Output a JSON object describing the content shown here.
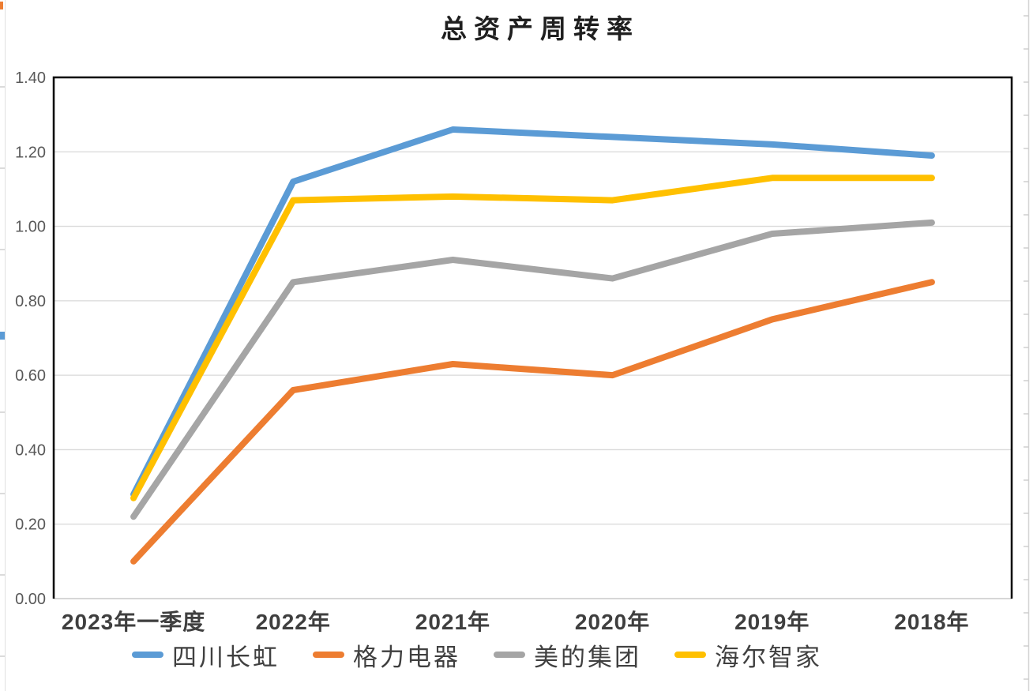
{
  "chart_data": {
    "type": "line",
    "title": "总资产周转率",
    "categories": [
      "2023年一季度",
      "2022年",
      "2021年",
      "2020年",
      "2019年",
      "2018年"
    ],
    "series": [
      {
        "name": "四川长虹",
        "color": "#5B9BD5",
        "values": [
          0.28,
          1.12,
          1.26,
          1.24,
          1.22,
          1.19
        ]
      },
      {
        "name": "格力电器",
        "color": "#ED7D31",
        "values": [
          0.1,
          0.56,
          0.63,
          0.6,
          0.75,
          0.85
        ]
      },
      {
        "name": "美的集团",
        "color": "#A5A5A5",
        "values": [
          0.22,
          0.85,
          0.91,
          0.86,
          0.98,
          1.01
        ]
      },
      {
        "name": "海尔智家",
        "color": "#FFC000",
        "values": [
          0.27,
          1.07,
          1.08,
          1.07,
          1.13,
          1.13
        ]
      }
    ],
    "ylim": [
      0,
      1.4
    ],
    "ytick_step": 0.2,
    "y_tick_labels": [
      "0.00",
      "0.20",
      "0.40",
      "0.60",
      "0.80",
      "1.00",
      "1.20",
      "1.40"
    ],
    "grid": true,
    "legend_position": "bottom",
    "style": {
      "grid_color": "#D9D9D9",
      "bottom_axis_color": "#BFBFBF",
      "plot_border_color": "#000000",
      "tick_label_color": "#595959",
      "x_label_color": "#3F3F3F",
      "legend_text_color": "#404040"
    }
  }
}
